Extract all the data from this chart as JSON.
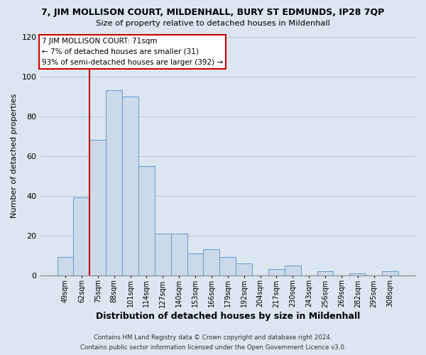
{
  "title": "7, JIM MOLLISON COURT, MILDENHALL, BURY ST EDMUNDS, IP28 7QP",
  "subtitle": "Size of property relative to detached houses in Mildenhall",
  "xlabel": "Distribution of detached houses by size in Mildenhall",
  "ylabel": "Number of detached properties",
  "bar_labels": [
    "49sqm",
    "62sqm",
    "75sqm",
    "88sqm",
    "101sqm",
    "114sqm",
    "127sqm",
    "140sqm",
    "153sqm",
    "166sqm",
    "179sqm",
    "192sqm",
    "204sqm",
    "217sqm",
    "230sqm",
    "243sqm",
    "256sqm",
    "269sqm",
    "282sqm",
    "295sqm",
    "308sqm"
  ],
  "bar_values": [
    9,
    39,
    68,
    93,
    90,
    55,
    21,
    21,
    11,
    13,
    9,
    6,
    0,
    3,
    5,
    0,
    2,
    0,
    1,
    0,
    2
  ],
  "bar_color": "#ccd9ea",
  "bar_edge_color": "#6699cc",
  "ylim": [
    0,
    120
  ],
  "yticks": [
    0,
    20,
    40,
    60,
    80,
    100,
    120
  ],
  "vline_x": 1.5,
  "vline_color": "#cc0000",
  "annotation_title": "7 JIM MOLLISON COURT: 71sqm",
  "annotation_line1": "← 7% of detached houses are smaller (31)",
  "annotation_line2": "93% of semi-detached houses are larger (392) →",
  "footer_line1": "Contains HM Land Registry data © Crown copyright and database right 2024.",
  "footer_line2": "Contains public sector information licensed under the Open Government Licence v3.0.",
  "background_color": "#dce6f1",
  "plot_bg_color": "#dce6f1",
  "grid_color": "#b8c8dc"
}
